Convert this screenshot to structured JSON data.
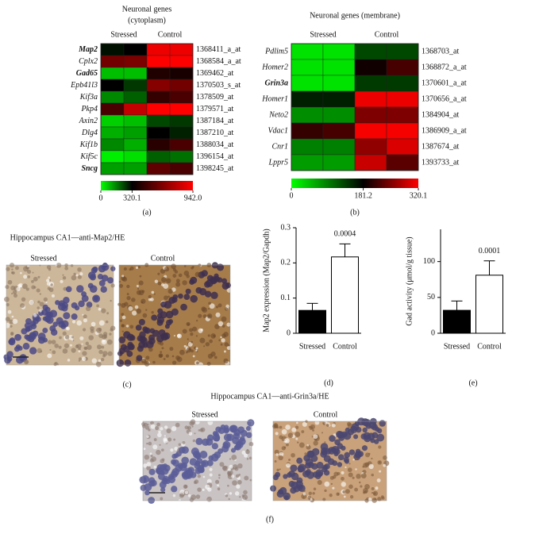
{
  "chart_data": [
    {
      "type": "heatmap",
      "title": "Neuronal genes",
      "subtitle": "(cytoplasm)",
      "label": "(a)",
      "column_groups": [
        "Stressed",
        "Control"
      ],
      "rows": [
        "Map2",
        "Cplx2",
        "Gad65",
        "Epb41l3",
        "Kif3a",
        "Pkp4",
        "Axin2",
        "Dlg4",
        "Kif1b",
        "Kif5c",
        "Sncg"
      ],
      "row_ids": [
        "1368411_a_at",
        "1368584_a_at",
        "1369462_at",
        "1370503_s_at",
        "1378509_at",
        "1379571_at",
        "1387184_at",
        "1387210_at",
        "1388034_at",
        "1396154_at",
        "1398245_at"
      ],
      "highlight": [
        "Map2",
        "Gad65",
        "Sncg"
      ],
      "values": [
        [
          300,
          320,
          900,
          900
        ],
        [
          600,
          620,
          940,
          940
        ],
        [
          80,
          80,
          400,
          380
        ],
        [
          320,
          250,
          650,
          600
        ],
        [
          150,
          200,
          450,
          500
        ],
        [
          500,
          800,
          940,
          940
        ],
        [
          60,
          80,
          230,
          250
        ],
        [
          100,
          120,
          320,
          280
        ],
        [
          150,
          100,
          420,
          500
        ],
        [
          20,
          40,
          200,
          180
        ],
        [
          120,
          120,
          550,
          500
        ]
      ],
      "colors": [
        "#00ff00",
        "#000000",
        "#ff0000"
      ],
      "cticks": [
        0,
        320.1,
        {
          "value": 942,
          "label": "942.0"
        }
      ]
    },
    {
      "type": "heatmap",
      "title": "Neuronal genes (membrane)",
      "label": "(b)",
      "column_groups": [
        "Stressed",
        "Control"
      ],
      "rows": [
        "Pdlim5",
        "Homer2",
        "Grin3a",
        "Homer1",
        "Neto2",
        "Vdac1",
        "Cnr1",
        "Lppr5"
      ],
      "row_ids": [
        "1368703_at",
        "1368872_a_at",
        "1370601_a_at",
        "1370656_a_at",
        "1384904_at",
        "1386909_a_at",
        "1387674_at",
        "1393733_at"
      ],
      "highlight": [
        "Grin3a"
      ],
      "values": [
        [
          20,
          20,
          130,
          130
        ],
        [
          20,
          20,
          190,
          220
        ],
        [
          20,
          20,
          140,
          140
        ],
        [
          160,
          160,
          310,
          310
        ],
        [
          80,
          80,
          250,
          250
        ],
        [
          210,
          220,
          315,
          315
        ],
        [
          90,
          90,
          260,
          300
        ],
        [
          70,
          70,
          290,
          230
        ]
      ],
      "colors": [
        "#00ff00",
        "#000000",
        "#ff0000"
      ],
      "cticks": [
        0,
        181.2,
        320.1
      ]
    },
    {
      "type": "bar",
      "label": "(d)",
      "ylabel": "Map2 expression (Map2/Gapdh)",
      "categories": [
        "Stressed",
        "Control"
      ],
      "values": [
        0.065,
        0.217
      ],
      "errors": [
        0.02,
        0.037
      ],
      "colors": [
        "#000000",
        "#ffffff"
      ],
      "annotation": "0.0004",
      "ylim": [
        0,
        0.3
      ],
      "yticks": [
        0,
        0.1,
        0.2,
        0.3
      ]
    },
    {
      "type": "bar",
      "label": "(e)",
      "ylabel": "Gad activity (μmol/g tissue)",
      "categories": [
        "Stressed",
        "Control"
      ],
      "values": [
        32,
        81
      ],
      "errors": [
        13,
        20
      ],
      "colors": [
        "#000000",
        "#ffffff"
      ],
      "annotation": "0.0001",
      "ylim": [
        0,
        145
      ],
      "yticks": [
        0,
        50,
        100
      ]
    }
  ],
  "micrographs": [
    {
      "title": "Hippocampus CA1—anti-Map2/HE",
      "panels": [
        "Stressed",
        "Control"
      ],
      "label": "(c)"
    },
    {
      "title": "Hippocampus CA1—anti-Grin3a/HE",
      "panels": [
        "Stressed",
        "Control"
      ],
      "label": "(f)"
    }
  ]
}
